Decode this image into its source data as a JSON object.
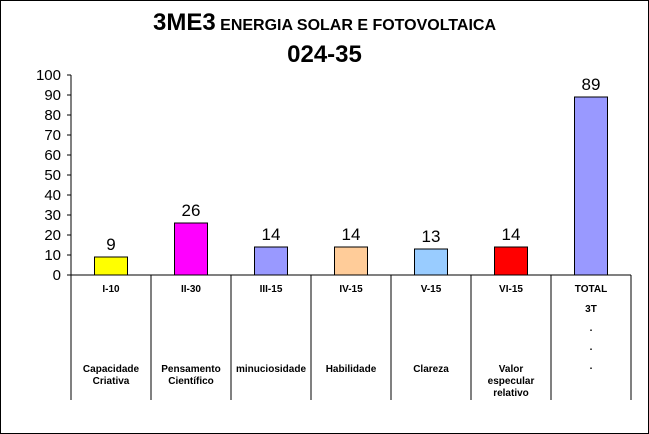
{
  "title": {
    "course_code": "3ME3",
    "course_name": "ENERGIA SOLAR E FOTOVOLTAICA",
    "class_code": "024-35"
  },
  "chart_data": {
    "type": "bar",
    "categories": [
      "I-10",
      "II-30",
      "III-15",
      "IV-15",
      "V-15",
      "VI-15",
      "TOTAL"
    ],
    "values": [
      9,
      26,
      14,
      14,
      13,
      14,
      89
    ],
    "data_labels": [
      "9",
      "26",
      "14",
      "14",
      "13",
      "14",
      "89"
    ],
    "descriptions": [
      [
        "Capacidade",
        "Criativa"
      ],
      [
        "Pensamento",
        "Científico"
      ],
      [
        "minuciosidade"
      ],
      [
        "Habilidade"
      ],
      [
        "Clareza"
      ],
      [
        "Valor",
        "especular",
        "relativo"
      ],
      []
    ],
    "total_extra_lines": [
      "3T",
      ".",
      ".",
      "."
    ],
    "bar_colors": [
      "#FFFF00",
      "#FF00FF",
      "#9999FF",
      "#FFCC99",
      "#99CCFF",
      "#FF0000",
      "#9999FF"
    ],
    "y_ticks": [
      "0",
      "10",
      "20",
      "30",
      "40",
      "50",
      "60",
      "70",
      "80",
      "90",
      "100"
    ],
    "ylim": [
      0,
      100
    ],
    "grid": false,
    "legend": "none"
  }
}
